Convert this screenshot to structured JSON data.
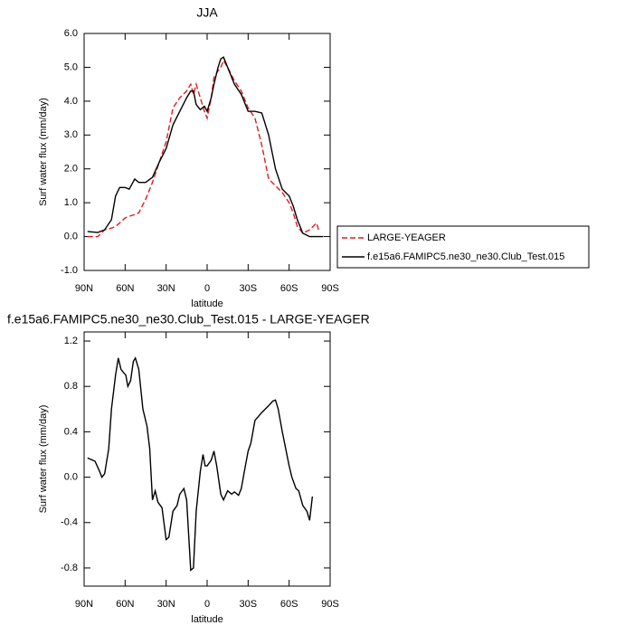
{
  "chart_data": [
    {
      "type": "line",
      "title": "JJA",
      "x_label": "latitude",
      "y_label": "Surf water flux (mm/day)",
      "x": [
        87.5,
        85,
        80,
        75,
        70,
        67,
        64,
        60,
        57,
        53,
        50,
        45,
        40,
        35,
        30,
        25,
        20,
        15,
        12,
        10,
        8,
        5,
        2,
        0,
        -3,
        -5,
        -8,
        -10,
        -12,
        -15,
        -20,
        -25,
        -30,
        -35,
        -40,
        -45,
        -50,
        -55,
        -60,
        -63,
        -66,
        -70,
        -75,
        -80,
        -82,
        -85
      ],
      "series": [
        {
          "name": "LARGE-YEAGER",
          "color": "#e41a1c",
          "dash": true,
          "values": [
            0,
            0,
            0,
            0.2,
            0.25,
            0.3,
            0.4,
            0.55,
            0.6,
            0.65,
            0.7,
            1.1,
            1.6,
            2.2,
            2.8,
            3.8,
            4.1,
            4.3,
            4.5,
            4.2,
            4.5,
            4.1,
            3.7,
            3.5,
            4.1,
            4.7,
            4.9,
            5.0,
            5.2,
            5.0,
            4.6,
            4.3,
            3.8,
            3.5,
            2.7,
            1.7,
            1.5,
            1.3,
            1.0,
            0.7,
            0.3,
            0.1,
            0.2,
            0.4,
            0.15,
            null
          ]
        },
        {
          "name": "f.e15a6.FAMIPC5.ne30_ne30.Club_Test.015",
          "color": "#000000",
          "dash": false,
          "values": [
            0.15,
            0.14,
            0.12,
            0.2,
            0.5,
            1.2,
            1.45,
            1.45,
            1.4,
            1.7,
            1.6,
            1.6,
            1.75,
            2.2,
            2.6,
            3.3,
            3.7,
            4.1,
            4.3,
            4.3,
            3.9,
            3.75,
            3.85,
            3.7,
            4.1,
            4.5,
            5.0,
            5.25,
            5.3,
            5.0,
            4.5,
            4.2,
            3.7,
            3.7,
            3.65,
            3.0,
            2.0,
            1.4,
            1.2,
            0.9,
            0.5,
            0.1,
            0.0,
            0.0,
            0.0,
            0.0
          ]
        }
      ],
      "xlim": [
        90,
        -90
      ],
      "xticks": [
        {
          "value": 90,
          "label": "90N"
        },
        {
          "value": 60,
          "label": "60N"
        },
        {
          "value": 30,
          "label": "30N"
        },
        0,
        {
          "value": -30,
          "label": "30S"
        },
        {
          "value": -60,
          "label": "60S"
        },
        {
          "value": -90,
          "label": "90S"
        }
      ],
      "ylim": [
        -1,
        6
      ],
      "yticks": [
        {
          "value": 6,
          "label": "6.0"
        },
        {
          "value": 5,
          "label": "5.0"
        },
        {
          "value": 4,
          "label": "4.0"
        },
        {
          "value": 3,
          "label": "3.0"
        },
        {
          "value": 2,
          "label": "2.0"
        },
        {
          "value": 1,
          "label": "1.0"
        },
        {
          "value": 0,
          "label": "0.0"
        },
        {
          "value": -1,
          "label": "-1.0"
        }
      ],
      "legend": "right"
    },
    {
      "type": "line",
      "title": "f.e15a6.FAMIPC5.ne30_ne30.Club_Test.015 - LARGE-YEAGER",
      "x_label": "latitude",
      "y_label": "Surf water flux (mm/day)",
      "x": [
        87.5,
        82,
        79,
        77,
        75,
        72,
        70,
        67,
        65,
        63,
        61,
        59.5,
        58,
        56,
        54,
        52.5,
        50,
        47,
        44,
        42,
        40,
        38,
        36,
        33,
        30,
        28,
        25,
        22,
        20,
        17,
        15,
        12,
        10,
        8,
        5,
        3,
        1.5,
        0,
        -3,
        -5,
        -7,
        -10,
        -12,
        -15,
        -18,
        -20,
        -23,
        -25,
        -28,
        -30,
        -32,
        -35,
        -40,
        -45,
        -48,
        -50,
        -52,
        -55,
        -60,
        -62,
        -65,
        -67,
        -70,
        -73,
        -75,
        -77
      ],
      "series": [
        {
          "color": "#000000",
          "dash": false,
          "values": [
            0.17,
            0.14,
            0.06,
            0.0,
            0.03,
            0.25,
            0.6,
            0.9,
            1.05,
            0.95,
            0.92,
            0.9,
            0.8,
            0.85,
            1.02,
            1.05,
            0.95,
            0.6,
            0.45,
            0.25,
            -0.2,
            -0.12,
            -0.22,
            -0.27,
            -0.55,
            -0.53,
            -0.3,
            -0.25,
            -0.15,
            -0.1,
            -0.2,
            -0.82,
            -0.8,
            -0.3,
            0.05,
            0.2,
            0.1,
            0.1,
            0.15,
            0.23,
            0.1,
            -0.15,
            -0.2,
            -0.12,
            -0.15,
            -0.13,
            -0.16,
            -0.1,
            0.1,
            0.23,
            0.3,
            0.5,
            0.57,
            0.63,
            0.67,
            0.68,
            0.6,
            0.4,
            0.1,
            0.0,
            -0.1,
            -0.12,
            -0.25,
            -0.3,
            -0.38,
            -0.17
          ]
        }
      ],
      "xlim": [
        90,
        -90
      ],
      "xticks": [
        {
          "value": 90,
          "label": "90N"
        },
        {
          "value": 60,
          "label": "60N"
        },
        {
          "value": 30,
          "label": "30N"
        },
        0,
        {
          "value": -30,
          "label": "30S"
        },
        {
          "value": -60,
          "label": "60S"
        },
        {
          "value": -90,
          "label": "90S"
        }
      ],
      "ylim": [
        -0.96,
        1.28
      ],
      "yticks": [
        1.2,
        0.8,
        0.4,
        {
          "value": 0,
          "label": "0.0"
        },
        -0.4,
        -0.8
      ]
    }
  ]
}
